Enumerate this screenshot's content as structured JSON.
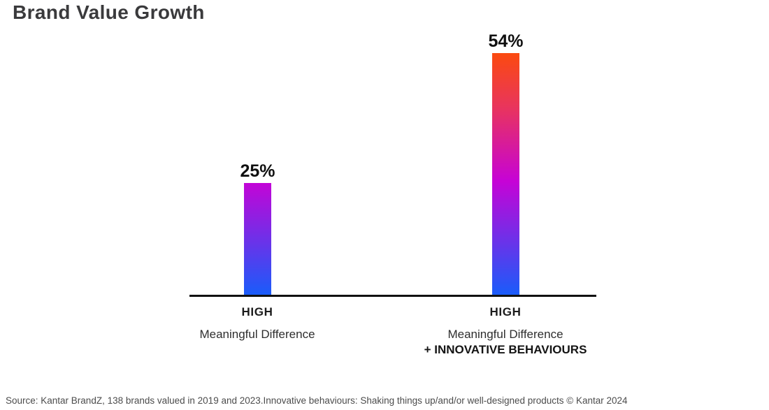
{
  "title": "Brand Value Growth",
  "source_note": "Source: Kantar BrandZ, 138 brands valued in 2019 and 2023.Innovative behaviours: Shaking things up/and/or well-designed products © Kantar 2024",
  "colors": {
    "gradient_top": "#fb4a0f",
    "gradient_upper": "#e9355b",
    "gradient_mid": "#c603d6",
    "gradient_bottom": "#1a5cfa",
    "axis": "#111111",
    "title_text": "#3a3a3c",
    "label_text": "#101010"
  },
  "chart_data": {
    "type": "bar",
    "title": "Brand Value Growth",
    "categories": [
      "HIGH Meaningful Difference",
      "HIGH Meaningful Difference + INNOVATIVE BEHAVIOURS"
    ],
    "values": [
      25,
      54
    ],
    "unit": "%",
    "xlabel": "",
    "ylabel": "",
    "ylim": [
      0,
      54
    ],
    "grid": false,
    "legend": false,
    "bar_style": "vertical gradient (orange to magenta to blue) anchored at baseline, shared across bars",
    "bars": [
      {
        "value": 25,
        "value_label": "25%",
        "tick_line1": "HIGH",
        "tick_line2": "Meaningful Difference",
        "tick_line3": ""
      },
      {
        "value": 54,
        "value_label": "54%",
        "tick_line1": "HIGH",
        "tick_line2": "Meaningful Difference",
        "tick_line3": "+ INNOVATIVE BEHAVIOURS"
      }
    ]
  }
}
